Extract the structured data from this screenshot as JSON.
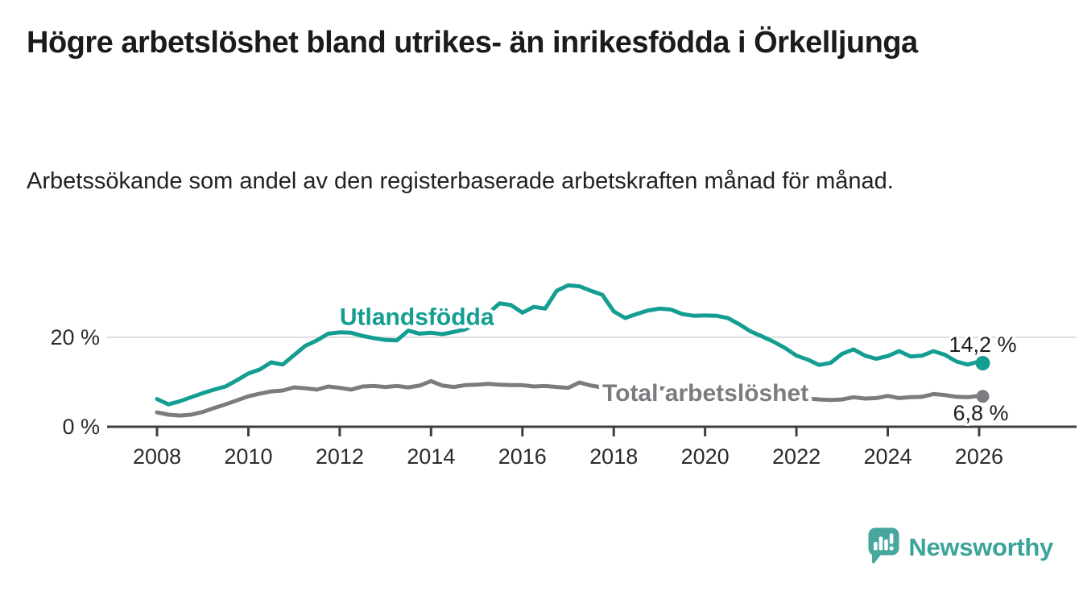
{
  "header": {
    "title": "Högre arbetslöshet bland utrikes- än inrikesfödda i Örkelljunga",
    "subtitle": "Arbetssökande som andel av den registerbaserade arbetskraften månad för månad."
  },
  "chart_data": {
    "type": "line",
    "xlabel": "",
    "ylabel": "",
    "xlim": [
      2007.6,
      2026.5
    ],
    "ylim": [
      0,
      33
    ],
    "grid": "single horizontal gridline at 20%",
    "gridlines": [
      20
    ],
    "xticks": [
      2008,
      2010,
      2012,
      2014,
      2016,
      2018,
      2020,
      2022,
      2024,
      2026
    ],
    "yticks": [
      {
        "value": 0,
        "label": "0 %"
      },
      {
        "value": 20,
        "label": "20 %"
      }
    ],
    "x": [
      2008,
      2008.25,
      2008.5,
      2008.75,
      2009,
      2009.25,
      2009.5,
      2009.75,
      2010,
      2010.25,
      2010.5,
      2010.75,
      2011,
      2011.25,
      2011.5,
      2011.75,
      2012,
      2012.25,
      2012.5,
      2012.75,
      2013,
      2013.25,
      2013.5,
      2013.75,
      2014,
      2014.25,
      2014.5,
      2014.75,
      2015,
      2015.25,
      2015.5,
      2015.75,
      2016,
      2016.25,
      2016.5,
      2016.75,
      2017,
      2017.25,
      2017.5,
      2017.75,
      2018,
      2018.25,
      2018.5,
      2018.75,
      2019,
      2019.25,
      2019.5,
      2019.75,
      2020,
      2020.25,
      2020.5,
      2020.75,
      2021,
      2021.25,
      2021.5,
      2021.75,
      2022,
      2022.25,
      2022.5,
      2022.75,
      2023,
      2023.25,
      2023.5,
      2023.75,
      2024,
      2024.25,
      2024.5,
      2024.75,
      2025,
      2025.25,
      2025.5,
      2025.75,
      2026,
      2026.08
    ],
    "series": [
      {
        "name": "Utlandsfödda",
        "color": "#149d91",
        "end_label": "14,2 %",
        "end_value": 14.2,
        "label_pos": {
          "x": 2012.0,
          "y": 24.6
        },
        "values": [
          6.2,
          5.0,
          5.7,
          6.6,
          7.5,
          8.3,
          9.0,
          10.4,
          11.9,
          12.8,
          14.4,
          13.9,
          16.0,
          18.1,
          19.3,
          20.8,
          21.1,
          21.0,
          20.3,
          19.8,
          19.4,
          19.3,
          21.5,
          20.8,
          21.0,
          20.7,
          21.2,
          21.8,
          23.0,
          25.3,
          27.6,
          27.2,
          25.5,
          26.8,
          26.4,
          30.4,
          31.6,
          31.4,
          30.4,
          29.5,
          25.8,
          24.3,
          25.2,
          26.0,
          26.4,
          26.2,
          25.2,
          24.8,
          24.9,
          24.8,
          24.3,
          22.9,
          21.3,
          20.2,
          19.0,
          17.6,
          15.9,
          15.0,
          13.8,
          14.3,
          16.3,
          17.3,
          15.9,
          15.2,
          15.8,
          16.9,
          15.7,
          15.9,
          16.9,
          16.1,
          14.6,
          13.9,
          14.6,
          14.2
        ]
      },
      {
        "name": "Total arbetslöshet",
        "color": "#7b7b80",
        "end_label": "6,8 %",
        "end_value": 6.8,
        "label_pos": {
          "x": 2017.75,
          "y": 7.55
        },
        "values": [
          3.2,
          2.7,
          2.5,
          2.7,
          3.3,
          4.2,
          5.0,
          5.9,
          6.8,
          7.4,
          7.9,
          8.1,
          8.8,
          8.6,
          8.3,
          9.0,
          8.7,
          8.3,
          9.0,
          9.1,
          8.9,
          9.1,
          8.8,
          9.2,
          10.2,
          9.2,
          8.9,
          9.3,
          9.4,
          9.6,
          9.4,
          9.3,
          9.3,
          9.0,
          9.1,
          8.9,
          8.7,
          9.9,
          9.2,
          8.8,
          9.0,
          8.6,
          8.4,
          8.5,
          8.6,
          8.5,
          8.4,
          8.4,
          8.5,
          8.7,
          8.6,
          8.3,
          8.0,
          7.7,
          7.3,
          6.9,
          6.6,
          6.3,
          6.1,
          6.0,
          6.1,
          6.6,
          6.3,
          6.4,
          6.9,
          6.4,
          6.6,
          6.7,
          7.3,
          7.1,
          6.7,
          6.6,
          6.9,
          6.8
        ]
      }
    ],
    "colors": {
      "axis": "#3f3f3f",
      "grid": "#dcdcdc",
      "tick_text": "#2b2b2b",
      "annotation_text": "#1c1c1c"
    }
  },
  "footer": {
    "brand": "Newsworthy",
    "logo_icon": "speech-bubble-bar-chart-icon",
    "brand_color": "#3aa49b",
    "logo_color": "#47a79e"
  }
}
